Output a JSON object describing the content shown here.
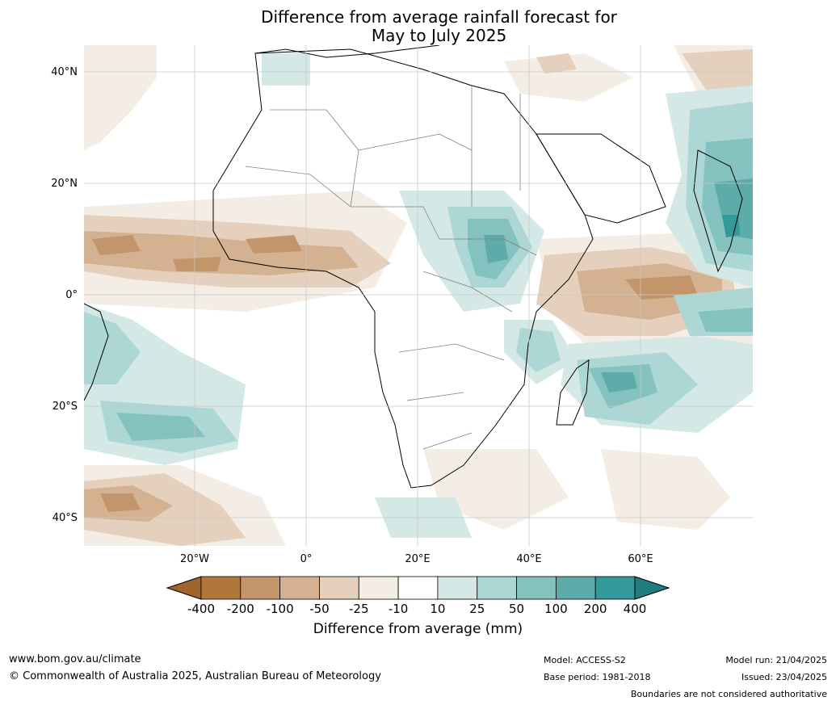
{
  "title": {
    "line1": "Difference from average rainfall forecast for",
    "line2": "May to July 2025"
  },
  "map": {
    "lat_labels": [
      "40°N",
      "20°N",
      "0°",
      "20°S",
      "40°S"
    ],
    "lon_labels": [
      "20°W",
      "0°",
      "20°E",
      "40°E",
      "60°E"
    ]
  },
  "colorbar": {
    "title": "Difference from average (mm)",
    "levels": [
      "-400",
      "-200",
      "-100",
      "-50",
      "-25",
      "-10",
      "10",
      "25",
      "50",
      "100",
      "200",
      "400"
    ],
    "colors": [
      "#a0652b",
      "#b0773d",
      "#c3956b",
      "#d4b190",
      "#e5d0bd",
      "#f3ede6",
      "#ffffff",
      "#d4e8e6",
      "#acd7d4",
      "#83c2bf",
      "#5daca9",
      "#33999a",
      "#1f7e7f"
    ]
  },
  "footer": {
    "website": "www.bom.gov.au/climate",
    "copyright": "© Commonwealth of Australia 2025, Australian Bureau of Meteorology",
    "model": "Model: ACCESS-S2",
    "base_period": "Base period: 1981-2018",
    "model_run": "Model run: 21/04/2025",
    "issued": "Issued: 23/04/2025",
    "disclaimer": "Boundaries are not considered authoritative"
  }
}
